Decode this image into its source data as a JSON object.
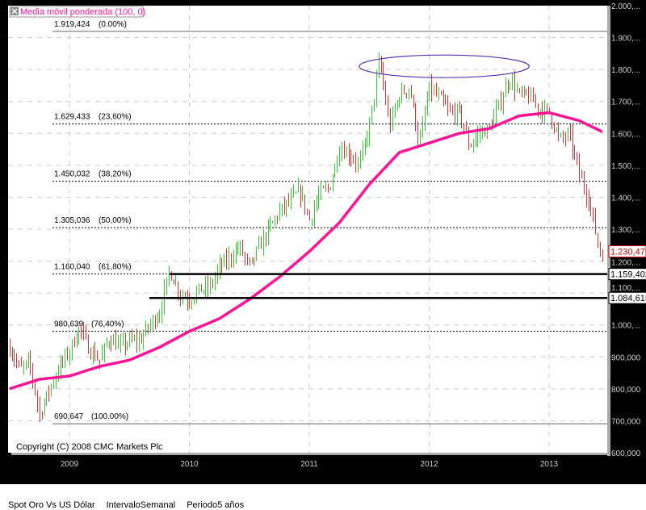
{
  "chart_data": {
    "type": "candlestick",
    "indicator_label": "Media móvil ponderada (100, 0)",
    "copyright": "Copyright (C) 2008 CMC Markets Plc",
    "x_ticks": [
      "2009",
      "2010",
      "2011",
      "2012",
      "2013"
    ],
    "y_ticks": [
      "2.000,...",
      "1.900,...",
      "1.800,...",
      "1.700,...",
      "1.600,...",
      "1.500,...",
      "1.400,...",
      "1.300,...",
      "1.200,...",
      "1.100,...",
      "1.000,...",
      "900,000",
      "800,000",
      "700,000",
      "600,000"
    ],
    "ylim": [
      600,
      2000
    ],
    "xlim": [
      "2008-07",
      "2013-07"
    ],
    "grid": true,
    "colors": {
      "up": "#33cc33",
      "down": "#dd3333",
      "ma": "#ff1493",
      "ellipse": "#5533aa",
      "last": "#cc0000"
    },
    "prices": [
      [
        "2008-07",
        930
      ],
      [
        "2008-08",
        860
      ],
      [
        "2008-09",
        880
      ],
      [
        "2008-10",
        720
      ],
      [
        "2008-11",
        800
      ],
      [
        "2008-12",
        870
      ],
      [
        "2009-01",
        920
      ],
      [
        "2009-02",
        990
      ],
      [
        "2009-03",
        920
      ],
      [
        "2009-04",
        890
      ],
      [
        "2009-05",
        960
      ],
      [
        "2009-06",
        930
      ],
      [
        "2009-07",
        950
      ],
      [
        "2009-08",
        950
      ],
      [
        "2009-09",
        1000
      ],
      [
        "2009-10",
        1040
      ],
      [
        "2009-11",
        1170
      ],
      [
        "2009-12",
        1100
      ],
      [
        "2010-01",
        1080
      ],
      [
        "2010-02",
        1110
      ],
      [
        "2010-03",
        1115
      ],
      [
        "2010-04",
        1180
      ],
      [
        "2010-05",
        1210
      ],
      [
        "2010-06",
        1245
      ],
      [
        "2010-07",
        1180
      ],
      [
        "2010-08",
        1245
      ],
      [
        "2010-09",
        1305
      ],
      [
        "2010-10",
        1355
      ],
      [
        "2010-11",
        1385
      ],
      [
        "2010-12",
        1420
      ],
      [
        "2011-01",
        1330
      ],
      [
        "2011-02",
        1410
      ],
      [
        "2011-03",
        1430
      ],
      [
        "2011-04",
        1555
      ],
      [
        "2011-05",
        1535
      ],
      [
        "2011-06",
        1500
      ],
      [
        "2011-07",
        1625
      ],
      [
        "2011-08",
        1830
      ],
      [
        "2011-09",
        1620
      ],
      [
        "2011-10",
        1720
      ],
      [
        "2011-11",
        1745
      ],
      [
        "2011-12",
        1565
      ],
      [
        "2012-01",
        1740
      ],
      [
        "2012-02",
        1710
      ],
      [
        "2012-03",
        1665
      ],
      [
        "2012-04",
        1665
      ],
      [
        "2012-05",
        1560
      ],
      [
        "2012-06",
        1600
      ],
      [
        "2012-07",
        1615
      ],
      [
        "2012-08",
        1690
      ],
      [
        "2012-09",
        1775
      ],
      [
        "2012-10",
        1720
      ],
      [
        "2012-11",
        1715
      ],
      [
        "2012-12",
        1675
      ],
      [
        "2013-01",
        1665
      ],
      [
        "2013-02",
        1580
      ],
      [
        "2013-03",
        1595
      ],
      [
        "2013-04",
        1470
      ],
      [
        "2013-05",
        1390
      ],
      [
        "2013-06",
        1230
      ]
    ],
    "ma": [
      [
        "2008-07",
        800
      ],
      [
        "2008-10",
        830
      ],
      [
        "2009-01",
        840
      ],
      [
        "2009-04",
        870
      ],
      [
        "2009-07",
        890
      ],
      [
        "2009-10",
        930
      ],
      [
        "2010-01",
        980
      ],
      [
        "2010-04",
        1020
      ],
      [
        "2010-07",
        1080
      ],
      [
        "2010-10",
        1150
      ],
      [
        "2011-01",
        1230
      ],
      [
        "2011-04",
        1320
      ],
      [
        "2011-07",
        1440
      ],
      [
        "2011-10",
        1540
      ],
      [
        "2012-01",
        1570
      ],
      [
        "2012-04",
        1600
      ],
      [
        "2012-07",
        1615
      ],
      [
        "2012-10",
        1655
      ],
      [
        "2013-01",
        1665
      ],
      [
        "2013-04",
        1640
      ],
      [
        "2013-07",
        1595
      ]
    ],
    "fib_levels": [
      {
        "price": 1919.424,
        "label": "1.919,424",
        "pct": "(0.00%)"
      },
      {
        "price": 1629.433,
        "label": "1.629,433",
        "pct": "(23,60%)"
      },
      {
        "price": 1450.032,
        "label": "1.450,032",
        "pct": "(38,20%)"
      },
      {
        "price": 1305.036,
        "label": "1.305,036",
        "pct": "(50,00%)"
      },
      {
        "price": 1160.04,
        "label": "1.160,040",
        "pct": "(61,80%)"
      },
      {
        "price": 980.639,
        "label": "980,639",
        "pct": "(76,40%)"
      },
      {
        "price": 690.647,
        "label": "690,647",
        "pct": "(100.00%)"
      }
    ],
    "support_lines": [
      {
        "price": 1159.402,
        "label": "1.159,402",
        "from": "2009-11"
      },
      {
        "price": 1084.615,
        "label": "1.084,615",
        "from": "2009-09"
      }
    ],
    "last_price": {
      "price": 1230.47,
      "label": "1.230,47"
    },
    "ellipse": {
      "from": "2011-06",
      "to": "2012-11",
      "price": 1810
    }
  },
  "footer": {
    "instrument": "Spot Oro Vs US Dólar",
    "interval": "IntervaloSemanal",
    "period": "Periodo5 años"
  }
}
